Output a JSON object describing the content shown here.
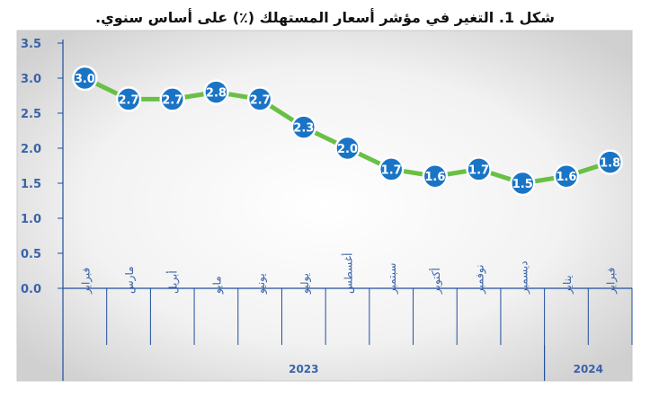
{
  "chart_data": {
    "type": "line",
    "title": "شكل 1. التغير في مؤشر أسعار المستهلك (٪) على أساس سنوي.",
    "categories": [
      "فبراير",
      "مارس",
      "أبريل",
      "مايو",
      "يونيو",
      "يوليو",
      "أغسطس",
      "سبتمبر",
      "أكتوبر",
      "نوفمبر",
      "ديسمبر",
      "يناير",
      "فبراير"
    ],
    "series": [
      {
        "values": [
          3.0,
          2.7,
          2.7,
          2.8,
          2.7,
          2.3,
          2.0,
          1.7,
          1.6,
          1.7,
          1.5,
          1.6,
          1.8
        ]
      }
    ],
    "year_groups": [
      {
        "label": "2023",
        "count": 11
      },
      {
        "label": "2024",
        "count": 2
      }
    ],
    "ylim": [
      0,
      3.5
    ],
    "yticks": [
      "0.0",
      "0.5",
      "1.0",
      "1.5",
      "2.0",
      "2.5",
      "3.0",
      "3.5"
    ],
    "xlabel": "",
    "ylabel": "",
    "grid": false,
    "legend": "none",
    "colors": {
      "line": "#6abf45",
      "marker": "#1a74c6",
      "marker_border": "#ffffff",
      "axis_text": "#3a63a8",
      "frame": "#1f4e9c",
      "plot_bg_center": "#ffffff",
      "plot_bg_edge": "#d2d2d2"
    }
  }
}
